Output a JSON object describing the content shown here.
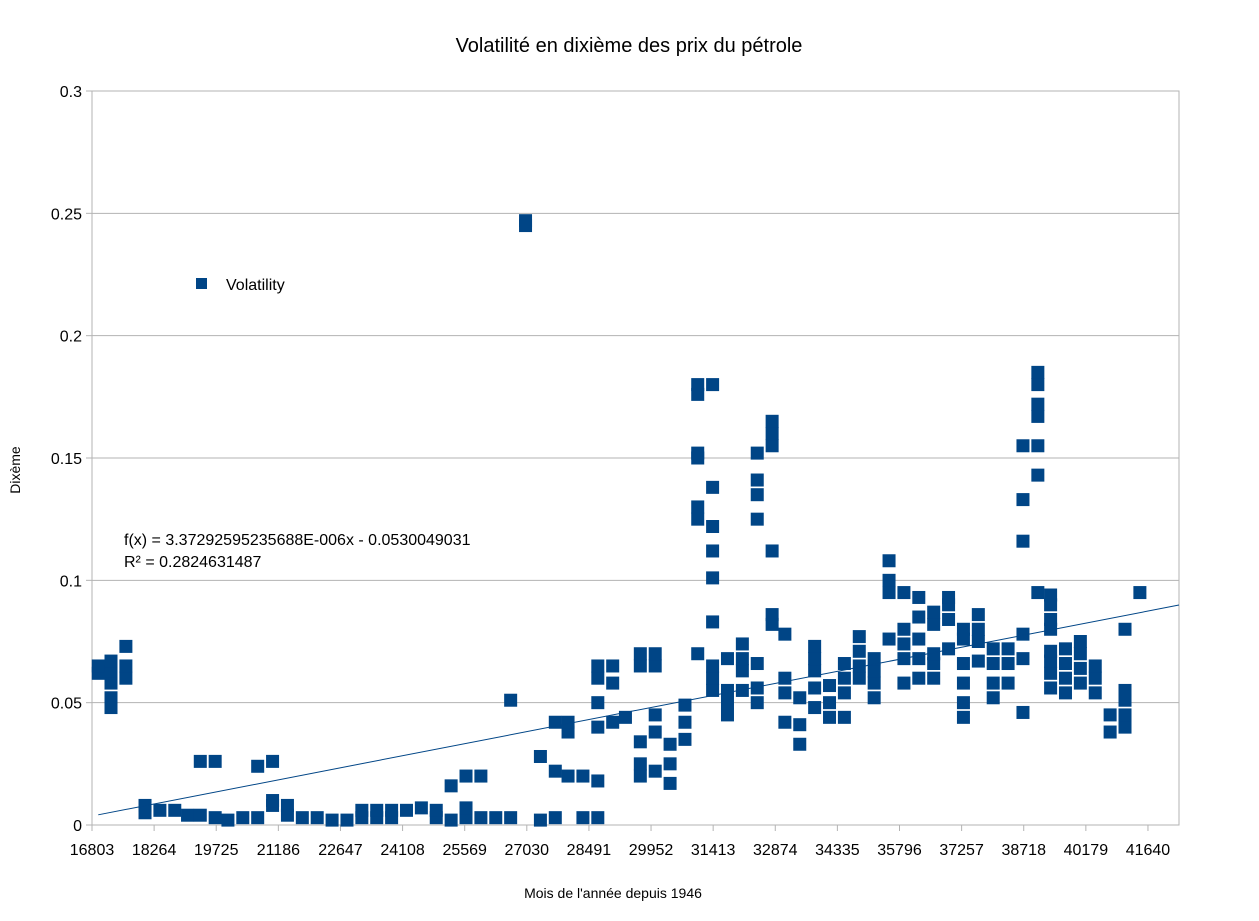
{
  "chart_data": {
    "type": "scatter",
    "title": "Volatilité en dixième des prix du pétrole",
    "xlabel": "Mois de l'année depuis 1946",
    "ylabel": "Dixème",
    "xlim": [
      16803,
      42370
    ],
    "ylim": [
      0,
      0.3
    ],
    "x_ticks": [
      "16803",
      "18264",
      "19725",
      "21186",
      "22647",
      "24108",
      "25569",
      "27030",
      "28491",
      "29952",
      "31413",
      "32874",
      "34335",
      "35796",
      "37257",
      "38718",
      "40179",
      "41640"
    ],
    "y_ticks": [
      "0",
      "0.05",
      "0.1",
      "0.15",
      "0.2",
      "0.25",
      "0.3"
    ],
    "grid": "horizontal",
    "legend_position": "top-left",
    "series": [
      {
        "name": "Volatility",
        "color": "#004586",
        "marker": "square",
        "points": [
          [
            16950,
            0.062
          ],
          [
            16950,
            0.065
          ],
          [
            17250,
            0.048
          ],
          [
            17250,
            0.052
          ],
          [
            17250,
            0.058
          ],
          [
            17250,
            0.063
          ],
          [
            17250,
            0.067
          ],
          [
            17600,
            0.06
          ],
          [
            17600,
            0.065
          ],
          [
            17600,
            0.073
          ],
          [
            18050,
            0.005
          ],
          [
            18050,
            0.008
          ],
          [
            18400,
            0.006
          ],
          [
            18750,
            0.006
          ],
          [
            19050,
            0.004
          ],
          [
            19350,
            0.004
          ],
          [
            19350,
            0.026
          ],
          [
            19700,
            0.003
          ],
          [
            19700,
            0.026
          ],
          [
            20000,
            0.002
          ],
          [
            20350,
            0.003
          ],
          [
            20700,
            0.003
          ],
          [
            20700,
            0.024
          ],
          [
            21050,
            0.026
          ],
          [
            21050,
            0.008
          ],
          [
            21050,
            0.01
          ],
          [
            21400,
            0.004
          ],
          [
            21400,
            0.008
          ],
          [
            21750,
            0.003
          ],
          [
            22100,
            0.003
          ],
          [
            22450,
            0.002
          ],
          [
            22800,
            0.002
          ],
          [
            23150,
            0.003
          ],
          [
            23150,
            0.006
          ],
          [
            23500,
            0.003
          ],
          [
            23500,
            0.006
          ],
          [
            23850,
            0.003
          ],
          [
            23850,
            0.006
          ],
          [
            24200,
            0.006
          ],
          [
            24550,
            0.007
          ],
          [
            24900,
            0.003
          ],
          [
            24900,
            0.006
          ],
          [
            25250,
            0.002
          ],
          [
            25250,
            0.016
          ],
          [
            25600,
            0.003
          ],
          [
            25600,
            0.007
          ],
          [
            25600,
            0.02
          ],
          [
            25950,
            0.003
          ],
          [
            25950,
            0.02
          ],
          [
            26300,
            0.003
          ],
          [
            26650,
            0.003
          ],
          [
            26650,
            0.051
          ],
          [
            27000,
            0.245
          ],
          [
            27000,
            0.247
          ],
          [
            27350,
            0.028
          ],
          [
            27350,
            0.002
          ],
          [
            27700,
            0.003
          ],
          [
            27700,
            0.022
          ],
          [
            27700,
            0.042
          ],
          [
            28000,
            0.02
          ],
          [
            28000,
            0.038
          ],
          [
            28000,
            0.042
          ],
          [
            28350,
            0.003
          ],
          [
            28350,
            0.02
          ],
          [
            28700,
            0.003
          ],
          [
            28700,
            0.018
          ],
          [
            28700,
            0.04
          ],
          [
            28700,
            0.05
          ],
          [
            28700,
            0.06
          ],
          [
            28700,
            0.065
          ],
          [
            29050,
            0.042
          ],
          [
            29050,
            0.058
          ],
          [
            29050,
            0.065
          ],
          [
            29350,
            0.044
          ],
          [
            29700,
            0.02
          ],
          [
            29700,
            0.025
          ],
          [
            29700,
            0.034
          ],
          [
            29700,
            0.065
          ],
          [
            29700,
            0.07
          ],
          [
            30050,
            0.022
          ],
          [
            30050,
            0.038
          ],
          [
            30050,
            0.045
          ],
          [
            30050,
            0.065
          ],
          [
            30050,
            0.07
          ],
          [
            30400,
            0.017
          ],
          [
            30400,
            0.025
          ],
          [
            30400,
            0.033
          ],
          [
            30750,
            0.035
          ],
          [
            30750,
            0.042
          ],
          [
            30750,
            0.049
          ],
          [
            31050,
            0.07
          ],
          [
            31050,
            0.125
          ],
          [
            31050,
            0.13
          ],
          [
            31050,
            0.15
          ],
          [
            31050,
            0.152
          ],
          [
            31050,
            0.176
          ],
          [
            31050,
            0.18
          ],
          [
            31400,
            0.055
          ],
          [
            31400,
            0.06
          ],
          [
            31400,
            0.065
          ],
          [
            31400,
            0.083
          ],
          [
            31400,
            0.101
          ],
          [
            31400,
            0.112
          ],
          [
            31400,
            0.122
          ],
          [
            31400,
            0.138
          ],
          [
            31400,
            0.18
          ],
          [
            31750,
            0.045
          ],
          [
            31750,
            0.05
          ],
          [
            31750,
            0.055
          ],
          [
            31750,
            0.068
          ],
          [
            32100,
            0.055
          ],
          [
            32100,
            0.063
          ],
          [
            32100,
            0.068
          ],
          [
            32100,
            0.074
          ],
          [
            32450,
            0.05
          ],
          [
            32450,
            0.056
          ],
          [
            32450,
            0.066
          ],
          [
            32450,
            0.125
          ],
          [
            32450,
            0.135
          ],
          [
            32450,
            0.141
          ],
          [
            32450,
            0.152
          ],
          [
            32800,
            0.082
          ],
          [
            32800,
            0.086
          ],
          [
            32800,
            0.112
          ],
          [
            32800,
            0.155
          ],
          [
            32800,
            0.16
          ],
          [
            32800,
            0.165
          ],
          [
            33100,
            0.042
          ],
          [
            33100,
            0.054
          ],
          [
            33100,
            0.06
          ],
          [
            33100,
            0.078
          ],
          [
            33450,
            0.033
          ],
          [
            33450,
            0.041
          ],
          [
            33450,
            0.052
          ],
          [
            33800,
            0.048
          ],
          [
            33800,
            0.056
          ],
          [
            33800,
            0.063
          ],
          [
            33800,
            0.068
          ],
          [
            33800,
            0.073
          ],
          [
            34150,
            0.044
          ],
          [
            34150,
            0.05
          ],
          [
            34150,
            0.057
          ],
          [
            34500,
            0.044
          ],
          [
            34500,
            0.054
          ],
          [
            34500,
            0.06
          ],
          [
            34500,
            0.066
          ],
          [
            34850,
            0.06
          ],
          [
            34850,
            0.065
          ],
          [
            34850,
            0.071
          ],
          [
            34850,
            0.077
          ],
          [
            35200,
            0.052
          ],
          [
            35200,
            0.058
          ],
          [
            35200,
            0.063
          ],
          [
            35200,
            0.068
          ],
          [
            35550,
            0.076
          ],
          [
            35550,
            0.095
          ],
          [
            35550,
            0.1
          ],
          [
            35550,
            0.108
          ],
          [
            35900,
            0.058
          ],
          [
            35900,
            0.068
          ],
          [
            35900,
            0.074
          ],
          [
            35900,
            0.08
          ],
          [
            35900,
            0.095
          ],
          [
            36250,
            0.06
          ],
          [
            36250,
            0.068
          ],
          [
            36250,
            0.076
          ],
          [
            36250,
            0.085
          ],
          [
            36250,
            0.093
          ],
          [
            36600,
            0.06
          ],
          [
            36600,
            0.066
          ],
          [
            36600,
            0.07
          ],
          [
            36600,
            0.082
          ],
          [
            36600,
            0.087
          ],
          [
            36950,
            0.072
          ],
          [
            36950,
            0.084
          ],
          [
            36950,
            0.09
          ],
          [
            36950,
            0.093
          ],
          [
            37300,
            0.044
          ],
          [
            37300,
            0.05
          ],
          [
            37300,
            0.058
          ],
          [
            37300,
            0.066
          ],
          [
            37300,
            0.076
          ],
          [
            37300,
            0.08
          ],
          [
            37650,
            0.067
          ],
          [
            37650,
            0.075
          ],
          [
            37650,
            0.08
          ],
          [
            37650,
            0.086
          ],
          [
            38000,
            0.052
          ],
          [
            38000,
            0.058
          ],
          [
            38000,
            0.066
          ],
          [
            38000,
            0.072
          ],
          [
            38350,
            0.058
          ],
          [
            38350,
            0.066
          ],
          [
            38350,
            0.072
          ],
          [
            38700,
            0.046
          ],
          [
            38700,
            0.068
          ],
          [
            38700,
            0.078
          ],
          [
            38700,
            0.116
          ],
          [
            38700,
            0.133
          ],
          [
            38700,
            0.155
          ],
          [
            39050,
            0.095
          ],
          [
            39050,
            0.143
          ],
          [
            39050,
            0.155
          ],
          [
            39050,
            0.167
          ],
          [
            39050,
            0.172
          ],
          [
            39050,
            0.18
          ],
          [
            39050,
            0.185
          ],
          [
            39350,
            0.056
          ],
          [
            39350,
            0.062
          ],
          [
            39350,
            0.067
          ],
          [
            39350,
            0.071
          ],
          [
            39350,
            0.08
          ],
          [
            39350,
            0.084
          ],
          [
            39350,
            0.09
          ],
          [
            39350,
            0.094
          ],
          [
            39700,
            0.054
          ],
          [
            39700,
            0.06
          ],
          [
            39700,
            0.066
          ],
          [
            39700,
            0.072
          ],
          [
            40050,
            0.058
          ],
          [
            40050,
            0.064
          ],
          [
            40050,
            0.07
          ],
          [
            40050,
            0.075
          ],
          [
            40400,
            0.054
          ],
          [
            40400,
            0.06
          ],
          [
            40400,
            0.065
          ],
          [
            40750,
            0.038
          ],
          [
            40750,
            0.045
          ],
          [
            41100,
            0.04
          ],
          [
            41100,
            0.045
          ],
          [
            41100,
            0.051
          ],
          [
            41100,
            0.055
          ],
          [
            41100,
            0.08
          ],
          [
            41450,
            0.095
          ]
        ]
      }
    ],
    "trendline": {
      "equation": "f(x) = 3.37292595235688E-006x - 0.0530049031",
      "r_squared": "R² = 0.2824631487",
      "slope": 3.37292595235688e-06,
      "intercept": -0.0530049031,
      "x_range": [
        16950,
        42370
      ],
      "color": "#004586"
    }
  }
}
